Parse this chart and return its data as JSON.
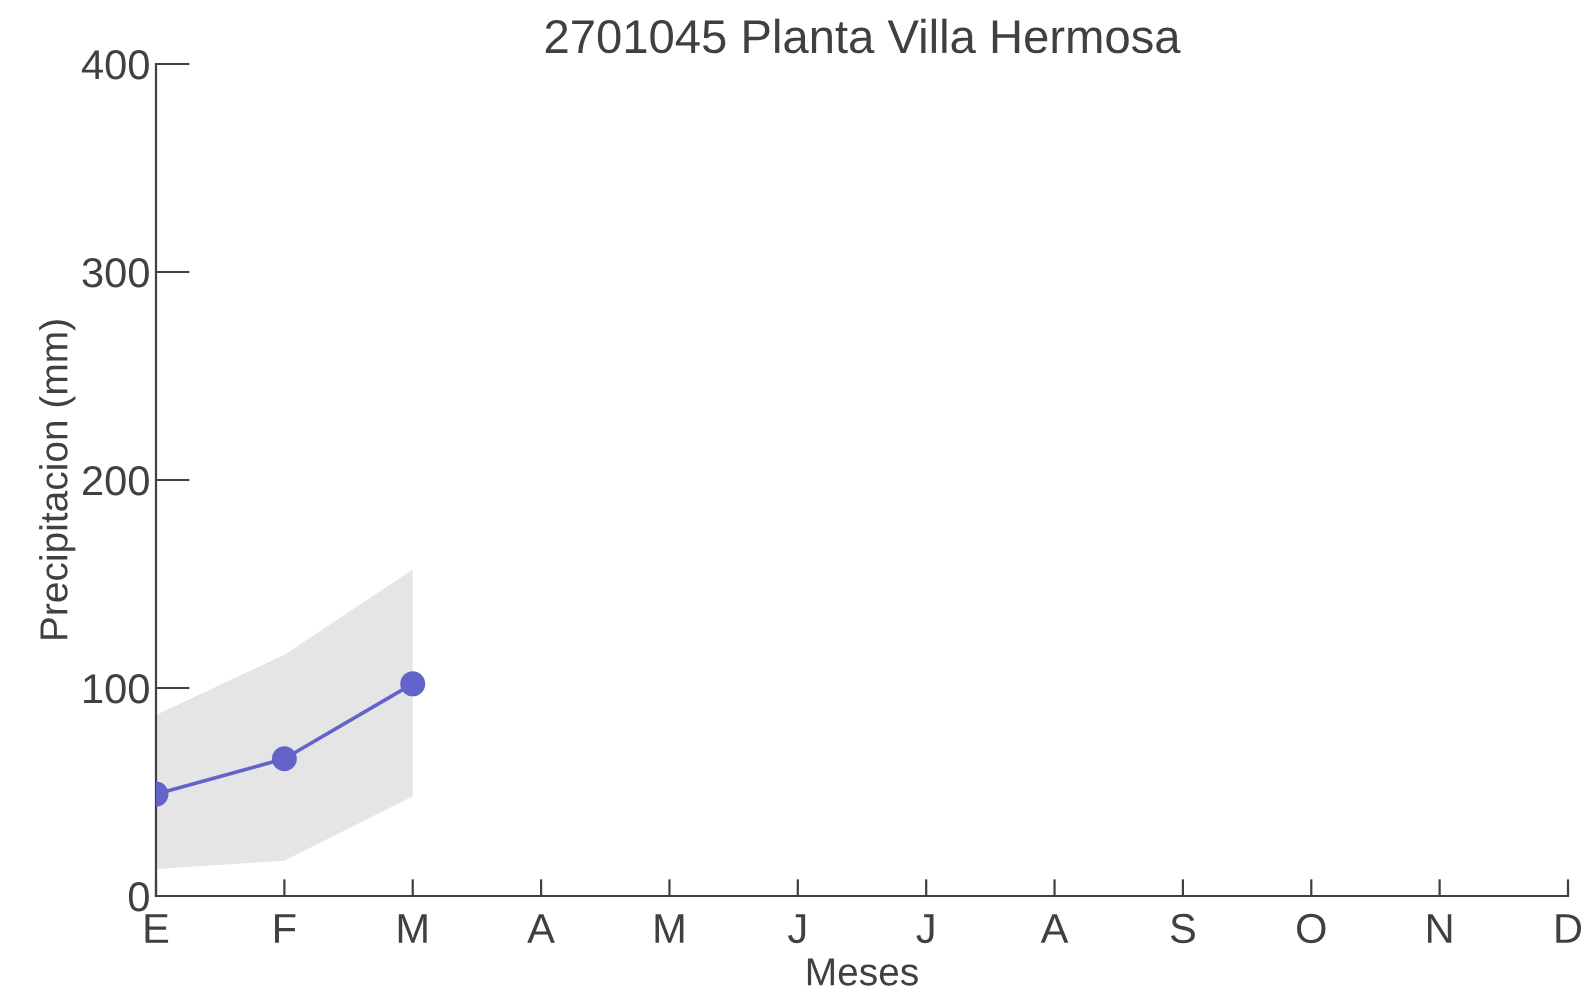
{
  "chart_data": {
    "type": "line",
    "title": "2701045 Planta Villa Hermosa",
    "xlabel": "Meses",
    "ylabel": "Precipitacion (mm)",
    "categories": [
      "E",
      "F",
      "M",
      "A",
      "M",
      "J",
      "J",
      "A",
      "S",
      "O",
      "N",
      "D"
    ],
    "series": [
      {
        "color": "#6363cc",
        "values": [
          49,
          66,
          102,
          null,
          null,
          null,
          null,
          null,
          null,
          null,
          null,
          null
        ],
        "lower": [
          13,
          17,
          48,
          null,
          null,
          null,
          null,
          null,
          null,
          null,
          null,
          null
        ],
        "upper": [
          87,
          116,
          157,
          null,
          null,
          null,
          null,
          null,
          null,
          null,
          null,
          null
        ]
      }
    ],
    "ylim": [
      0,
      400
    ],
    "yticks": [
      0,
      100,
      200,
      300,
      400
    ],
    "marker": "circle",
    "line_style": "solid",
    "grid": false,
    "legend": false
  }
}
